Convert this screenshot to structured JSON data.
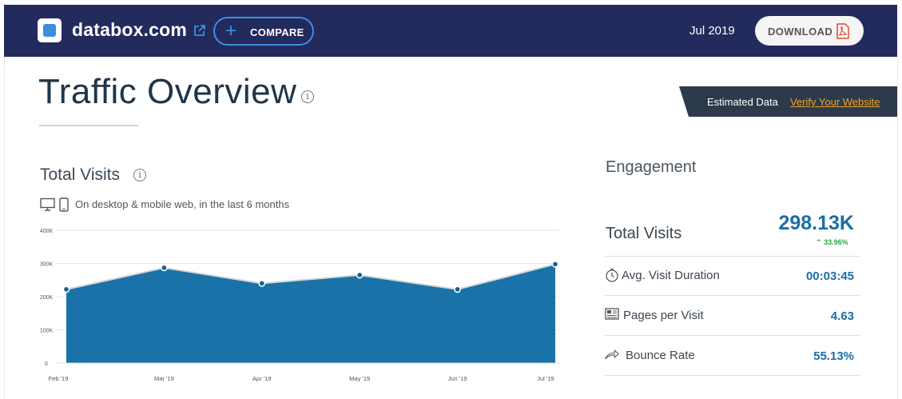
{
  "header": {
    "site": "databox.com",
    "compare_label": "COMPARE",
    "date": "Jul 2019",
    "download_label": "DOWNLOAD"
  },
  "page": {
    "title": "Traffic Overview",
    "estimated_label": "Estimated Data",
    "verify_link": "Verify Your Website"
  },
  "total_visits": {
    "title": "Total Visits",
    "subtitle": "On desktop & mobile web, in the last 6 months"
  },
  "chart_data": {
    "type": "area",
    "categories": [
      "Feb '19",
      "Mar '19",
      "Apr '19",
      "May '19",
      "Jun '19",
      "Jul '19"
    ],
    "values": [
      222000,
      287000,
      240000,
      265000,
      222000,
      298000
    ],
    "ylim": [
      0,
      400000
    ],
    "yticks": [
      "0",
      "100K",
      "200K",
      "300K",
      "400K"
    ],
    "grid": true,
    "color": "#1a73a8"
  },
  "engagement": {
    "title": "Engagement",
    "total_visits_label": "Total Visits",
    "total_visits_value": "298.13K",
    "total_visits_change": "33.96%",
    "rows": [
      {
        "label": "Avg. Visit Duration",
        "value": "00:03:45",
        "icon": "stopwatch-icon"
      },
      {
        "label": "Pages per Visit",
        "value": "4.63",
        "icon": "pages-icon"
      },
      {
        "label": "Bounce Rate",
        "value": "55.13%",
        "icon": "bounce-arrow-icon"
      }
    ]
  },
  "colors": {
    "header_bg": "#232a5c",
    "accent": "#3d8fe0",
    "value_blue": "#1c6ea4",
    "positive": "#2aa640",
    "link_orange": "#f4a21f"
  }
}
